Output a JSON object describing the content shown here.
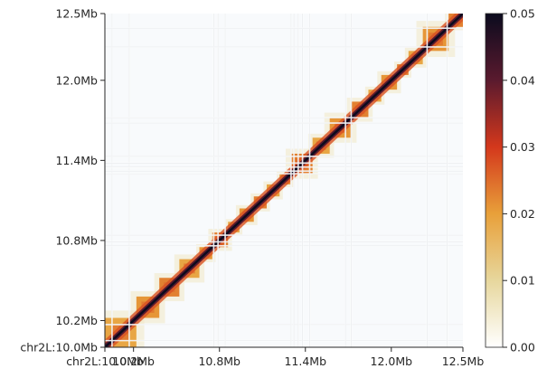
{
  "chart_data": {
    "type": "heatmap",
    "title": "",
    "xlabel": "",
    "ylabel": "",
    "chromosome": "chr2L",
    "xlim": [
      10.0,
      12.5
    ],
    "ylim": [
      10.0,
      12.5
    ],
    "units": "Mb",
    "x_ticks": [
      {
        "value": 10.0,
        "label": "chr2L:10.0Mb"
      },
      {
        "value": 10.2,
        "label": "10.2Mb"
      },
      {
        "value": 10.8,
        "label": "10.8Mb"
      },
      {
        "value": 11.4,
        "label": "11.4Mb"
      },
      {
        "value": 12.0,
        "label": "12.0Mb"
      },
      {
        "value": 12.5,
        "label": "12.5Mb"
      }
    ],
    "y_ticks": [
      {
        "value": 10.0,
        "label": "chr2L:10.0Mb"
      },
      {
        "value": 10.2,
        "label": "10.2Mb"
      },
      {
        "value": 10.8,
        "label": "10.8Mb"
      },
      {
        "value": 11.4,
        "label": "11.4Mb"
      },
      {
        "value": 12.0,
        "label": "12.0Mb"
      },
      {
        "value": 12.5,
        "label": "12.5Mb"
      }
    ],
    "colorbar": {
      "range": [
        0.0,
        0.05
      ],
      "ticks": [
        {
          "value": 0.0,
          "label": "0.00"
        },
        {
          "value": 0.01,
          "label": "0.01"
        },
        {
          "value": 0.02,
          "label": "0.02"
        },
        {
          "value": 0.03,
          "label": "0.03"
        },
        {
          "value": 0.04,
          "label": "0.04"
        },
        {
          "value": 0.05,
          "label": "0.05"
        }
      ],
      "colors": [
        "#ffffff",
        "#e7d79d",
        "#e8a03a",
        "#d4381c",
        "#5a1a2e",
        "#0b0b1e"
      ]
    },
    "domains_mb": [
      [
        10.0,
        10.22
      ],
      [
        10.22,
        10.38
      ],
      [
        10.38,
        10.52
      ],
      [
        10.52,
        10.66
      ],
      [
        10.66,
        10.75
      ],
      [
        10.75,
        10.86
      ],
      [
        10.86,
        10.94
      ],
      [
        10.94,
        11.04
      ],
      [
        11.04,
        11.13
      ],
      [
        11.13,
        11.22
      ],
      [
        11.22,
        11.3
      ],
      [
        11.3,
        11.45
      ],
      [
        11.45,
        11.57
      ],
      [
        11.57,
        11.72
      ],
      [
        11.72,
        11.84
      ],
      [
        11.84,
        11.93
      ],
      [
        11.93,
        12.04
      ],
      [
        12.04,
        12.12
      ],
      [
        12.12,
        12.22
      ],
      [
        12.22,
        12.4
      ],
      [
        12.4,
        12.5
      ]
    ],
    "masked_bins_mb": [
      10.05,
      10.17,
      10.76,
      10.79,
      10.84,
      11.3,
      11.32,
      11.35,
      11.38,
      11.43,
      11.68,
      11.72,
      12.25,
      12.39
    ]
  }
}
